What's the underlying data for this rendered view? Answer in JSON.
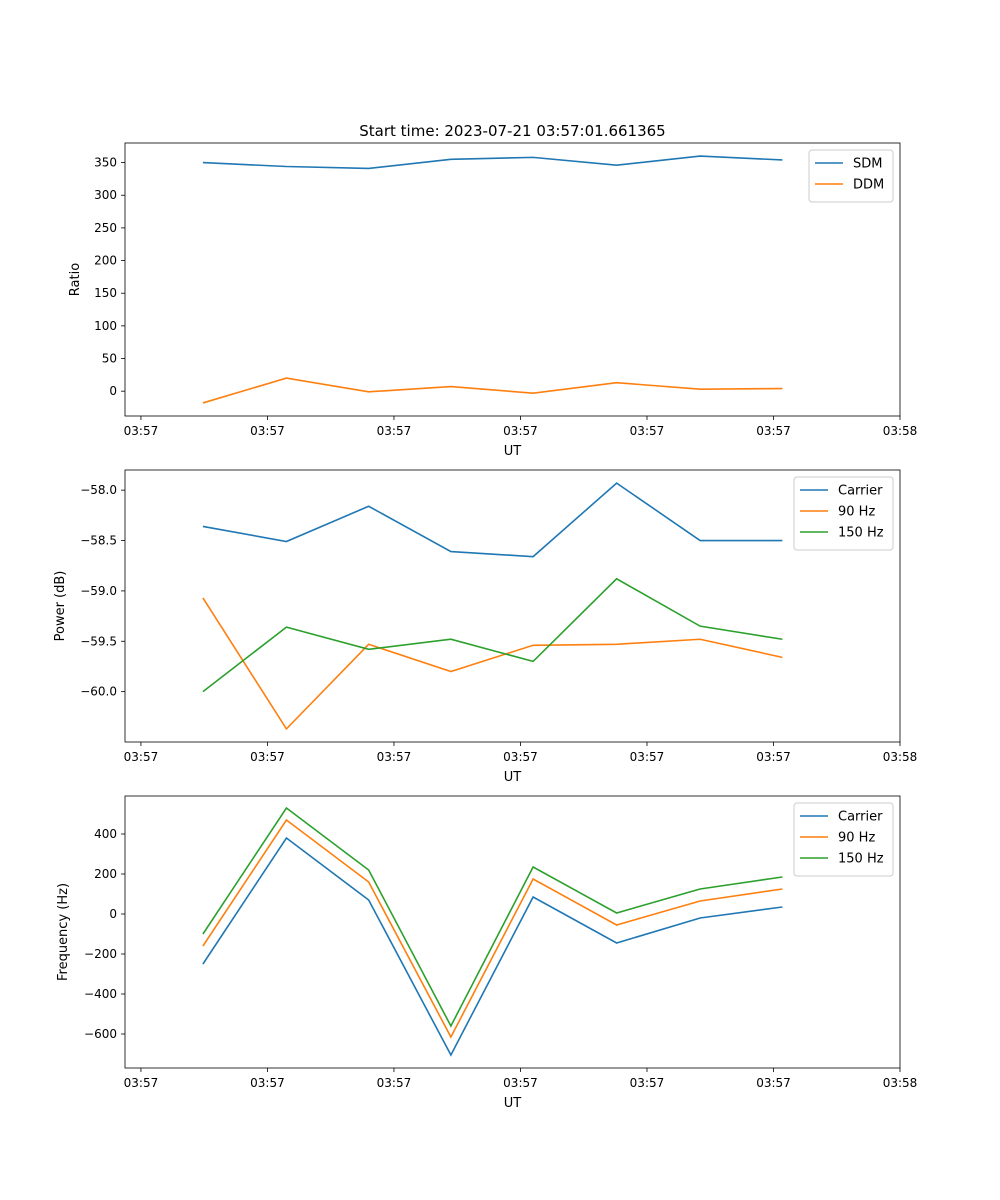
{
  "title": "Start time: 2023-07-21 03:57:01.661365",
  "chart_data": [
    {
      "type": "line",
      "xlabel": "UT",
      "ylabel": "Ratio",
      "xlim": [
        -1.26,
        60
      ],
      "ylim": [
        -38,
        380
      ],
      "xticks": [
        0,
        10,
        20,
        30,
        40,
        50,
        60
      ],
      "xtick_labels": [
        "03:57",
        "03:57",
        "03:57",
        "03:57",
        "03:57",
        "03:57",
        "03:58"
      ],
      "yticks": [
        0,
        50,
        100,
        150,
        200,
        250,
        300,
        350
      ],
      "ytick_labels": [
        "0",
        "50",
        "100",
        "150",
        "200",
        "250",
        "300",
        "350"
      ],
      "legend_placement": "top-right",
      "x": [
        4.9,
        11.5,
        18.0,
        24.5,
        31.0,
        37.6,
        44.2,
        50.7
      ],
      "series": [
        {
          "name": "SDM",
          "color": "#1f77b4",
          "values": [
            350,
            344,
            341,
            355,
            358,
            346,
            360,
            354
          ]
        },
        {
          "name": "DDM",
          "color": "#ff7f0e",
          "values": [
            -18,
            20,
            -1,
            7,
            -3,
            13,
            3,
            4
          ]
        }
      ]
    },
    {
      "type": "line",
      "xlabel": "UT",
      "ylabel": "Power (dB)",
      "xlim": [
        -1.26,
        60
      ],
      "ylim": [
        -60.5,
        -57.8
      ],
      "xticks": [
        0,
        10,
        20,
        30,
        40,
        50,
        60
      ],
      "xtick_labels": [
        "03:57",
        "03:57",
        "03:57",
        "03:57",
        "03:57",
        "03:57",
        "03:58"
      ],
      "yticks": [
        -60.0,
        -59.5,
        -59.0,
        -58.5,
        -58.0
      ],
      "ytick_labels": [
        "−60.0",
        "−59.5",
        "−59.0",
        "−58.5",
        "−58.0"
      ],
      "legend_placement": "top-right",
      "x": [
        4.9,
        11.5,
        18.0,
        24.5,
        31.0,
        37.6,
        44.2,
        50.7
      ],
      "series": [
        {
          "name": "Carrier",
          "color": "#1f77b4",
          "values": [
            -58.36,
            -58.51,
            -58.16,
            -58.61,
            -58.66,
            -57.93,
            -58.5,
            -58.5
          ]
        },
        {
          "name": "90 Hz",
          "color": "#ff7f0e",
          "values": [
            -59.07,
            -60.37,
            -59.53,
            -59.8,
            -59.54,
            -59.53,
            -59.48,
            -59.66
          ]
        },
        {
          "name": "150 Hz",
          "color": "#2ca02c",
          "values": [
            -60.0,
            -59.36,
            -59.58,
            -59.48,
            -59.7,
            -58.88,
            -59.35,
            -59.48
          ]
        }
      ]
    },
    {
      "type": "line",
      "xlabel": "UT",
      "ylabel": "Frequency (Hz)",
      "xlim": [
        -1.26,
        60
      ],
      "ylim": [
        -770,
        590
      ],
      "xticks": [
        0,
        10,
        20,
        30,
        40,
        50,
        60
      ],
      "xtick_labels": [
        "03:57",
        "03:57",
        "03:57",
        "03:57",
        "03:57",
        "03:57",
        "03:58"
      ],
      "yticks": [
        -600,
        -400,
        -200,
        0,
        200,
        400
      ],
      "ytick_labels": [
        "−600",
        "−400",
        "−200",
        "0",
        "200",
        "400"
      ],
      "legend_placement": "top-right",
      "x": [
        4.9,
        11.5,
        18.0,
        24.5,
        31.0,
        37.6,
        44.2,
        50.7
      ],
      "series": [
        {
          "name": "Carrier",
          "color": "#1f77b4",
          "values": [
            -250,
            380,
            70,
            -705,
            85,
            -145,
            -20,
            35
          ]
        },
        {
          "name": "90 Hz",
          "color": "#ff7f0e",
          "values": [
            -160,
            470,
            160,
            -615,
            175,
            -55,
            65,
            125
          ]
        },
        {
          "name": "150 Hz",
          "color": "#2ca02c",
          "values": [
            -100,
            530,
            220,
            -560,
            235,
            5,
            125,
            185
          ]
        }
      ]
    }
  ]
}
